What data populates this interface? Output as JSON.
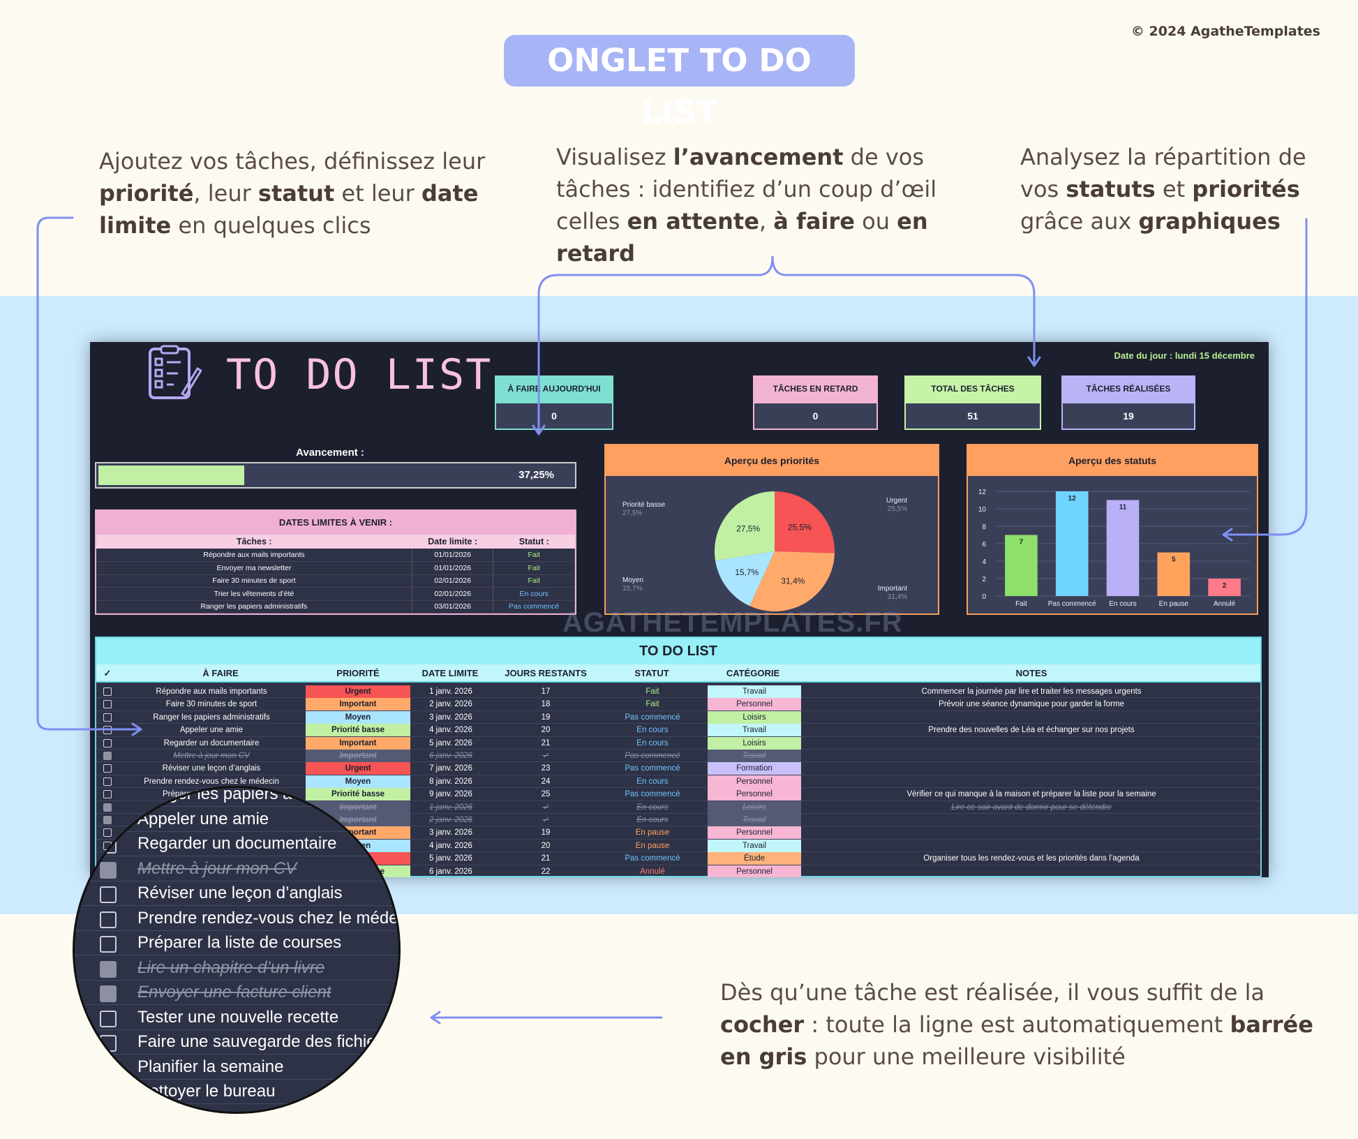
{
  "header": {
    "title": "ONGLET TO DO LIST",
    "copyright": "© 2024 AgatheTemplates"
  },
  "captions": {
    "c1": [
      "Ajoutez vos tâches, définissez leur ",
      "priorité",
      ", leur ",
      "statut",
      " et leur ",
      "date limite",
      " en quelques clics"
    ],
    "c2": [
      "Visualisez ",
      "l’avancement",
      " de vos tâches : identifiez d’un coup d’œil celles ",
      "en attente",
      ", ",
      "à faire",
      " ou ",
      "en retard"
    ],
    "c3": [
      "Analysez la répartition de vos ",
      "statuts",
      " et ",
      "priorités",
      " grâce aux ",
      "graphiques"
    ],
    "c4": [
      "Dès qu’une tâche est réalisée, il vous suffit de la ",
      "cocher",
      " : toute la ligne est automatiquement ",
      "barrée en gris",
      " pour une meilleure visibilité"
    ]
  },
  "app": {
    "title": "TO DO LIST",
    "date_du_jour": "Date du jour : lundi 15 décembre",
    "watermark": "AGATHETEMPLATES.FR",
    "kpis": [
      {
        "label": "À FAIRE AUJOURD'HUI",
        "value": "0",
        "color": "#7ee0d0"
      },
      {
        "label": "TÂCHES EN RETARD",
        "value": "0",
        "color": "#f3b4d2"
      },
      {
        "label": "TOTAL DES TÂCHES",
        "value": "51",
        "color": "#c6f3a8"
      },
      {
        "label": "TÂCHES RÉALISÉES",
        "value": "19",
        "color": "#b9b4f6"
      }
    ],
    "progress": {
      "label": "Avancement :",
      "value": 0.3725,
      "display": "37,25%"
    },
    "deadlines": {
      "title": "DATES LIMITES À VENIR :",
      "headers": [
        "Tâches :",
        "Date limite :",
        "Statut :"
      ],
      "rows": [
        [
          "Répondre aux mails importants",
          "01/01/2026",
          "Fait"
        ],
        [
          "Envoyer ma newsletter",
          "01/01/2026",
          "Fait"
        ],
        [
          "Faire 30 minutes de sport",
          "02/01/2026",
          "Fait"
        ],
        [
          "Trier les vêtements d’été",
          "02/01/2026",
          "En cours"
        ],
        [
          "Ranger les papiers administratifs",
          "03/01/2026",
          "Pas commencé"
        ]
      ]
    },
    "status_colors": {
      "Fait": "#a6f08a",
      "En cours": "#70c4ff",
      "Pas commencé": "#70c4ff",
      "En pause": "#ffa35c",
      "Annulé": "#ff7b7b"
    }
  },
  "chart_data": [
    {
      "type": "pie",
      "title": "Aperçu des priorités",
      "labels": [
        "Urgent",
        "Important",
        "Moyen",
        "Priorité basse"
      ],
      "values": [
        25.5,
        31.4,
        15.7,
        27.5
      ],
      "value_labels": [
        "25,5%",
        "31,4%",
        "15,7%",
        "27,5%"
      ],
      "colors": [
        "#f65455",
        "#ffaa6a",
        "#a9e5ff",
        "#c1f0a4"
      ]
    },
    {
      "type": "bar",
      "title": "Aperçu des statuts",
      "categories": [
        "Fait",
        "Pas commencé",
        "En cours",
        "En pause",
        "Annulé"
      ],
      "values": [
        7,
        12,
        11,
        5,
        2
      ],
      "colors": [
        "#8ee06a",
        "#6fd4ff",
        "#b9b0f7",
        "#ffa35c",
        "#ff7b88"
      ],
      "ylim": [
        0,
        12
      ],
      "yticks": [
        0,
        2,
        4,
        6,
        8,
        10,
        12
      ]
    }
  ],
  "todo": {
    "title": "TO DO LIST",
    "headers": {
      "check": "✓",
      "task": "À FAIRE",
      "priority": "PRIORITÉ",
      "date": "DATE LIMITE",
      "days": "JOURS RESTANTS",
      "status": "STATUT",
      "category": "CATÉGORIE",
      "notes": "NOTES"
    },
    "rows": [
      {
        "done": false,
        "task": "Répondre aux mails importants",
        "priority": "Urgent",
        "date": "1 janv. 2026",
        "days": "17",
        "status": "Fait",
        "category": "Travail",
        "notes": "Commencer la journée par lire et traiter les messages urgents"
      },
      {
        "done": false,
        "task": "Faire 30 minutes de sport",
        "priority": "Important",
        "date": "2 janv. 2026",
        "days": "18",
        "status": "Fait",
        "category": "Personnel",
        "notes": "Prévoir une séance dynamique pour garder la forme"
      },
      {
        "done": false,
        "task": "Ranger les papiers administratifs",
        "priority": "Moyen",
        "date": "3 janv. 2026",
        "days": "19",
        "status": "Pas commencé",
        "category": "Loisirs",
        "notes": ""
      },
      {
        "done": false,
        "task": "Appeler une amie",
        "priority": "Priorité basse",
        "date": "4 janv. 2026",
        "days": "20",
        "status": "En cours",
        "category": "Travail",
        "notes": "Prendre des nouvelles de Léa et échanger sur nos projets"
      },
      {
        "done": false,
        "task": "Regarder un documentaire",
        "priority": "Important",
        "date": "5 janv. 2026",
        "days": "21",
        "status": "En cours",
        "category": "Loisirs",
        "notes": ""
      },
      {
        "done": true,
        "task": "Mettre à jour mon CV",
        "priority": "Important",
        "date": "6 janv. 2026",
        "days": "✓",
        "status": "Pas commencé",
        "category": "Travail",
        "notes": ""
      },
      {
        "done": false,
        "task": "Réviser une leçon d’anglais",
        "priority": "Urgent",
        "date": "7 janv. 2026",
        "days": "23",
        "status": "Pas commencé",
        "category": "Formation",
        "notes": ""
      },
      {
        "done": false,
        "task": "Prendre rendez-vous chez le médecin",
        "priority": "Moyen",
        "date": "8 janv. 2026",
        "days": "24",
        "status": "En cours",
        "category": "Personnel",
        "notes": ""
      },
      {
        "done": false,
        "task": "Préparer la liste de courses",
        "priority": "Priorité basse",
        "date": "9 janv. 2026",
        "days": "25",
        "status": "Pas commencé",
        "category": "Personnel",
        "notes": "Vérifier ce qui manque à la maison et préparer la liste pour la semaine"
      },
      {
        "done": true,
        "task": "Lire un chapitre d’un livre",
        "priority": "Important",
        "date": "1 janv. 2026",
        "days": "✓",
        "status": "En cours",
        "category": "Loisirs",
        "notes": "Lire ce soir avant de dormir pour se détendre"
      },
      {
        "done": true,
        "task": "Envoyer une facture client",
        "priority": "Important",
        "date": "2 janv. 2026",
        "days": "✓",
        "status": "En cours",
        "category": "Travail",
        "notes": ""
      },
      {
        "done": false,
        "task": "Tester une nouvelle recette",
        "priority": "Important",
        "date": "3 janv. 2026",
        "days": "19",
        "status": "En pause",
        "category": "Personnel",
        "notes": ""
      },
      {
        "done": false,
        "task": "Faire une sauvegarde des fichiers",
        "priority": "Moyen",
        "date": "4 janv. 2026",
        "days": "20",
        "status": "En pause",
        "category": "Travail",
        "notes": ""
      },
      {
        "done": false,
        "task": "Planifier la semaine",
        "priority": "Urgent",
        "date": "5 janv. 2026",
        "days": "21",
        "status": "Pas commencé",
        "category": "Étude",
        "notes": "Organiser tous les rendez-vous et les priorités dans l’agenda"
      },
      {
        "done": false,
        "task": "Nettoyer le bureau",
        "priority": "Priorité basse",
        "date": "6 janv. 2026",
        "days": "22",
        "status": "Annulé",
        "category": "Personnel",
        "notes": ""
      }
    ],
    "priority_colors": {
      "Urgent": "#f65455",
      "Important": "#ffaa6a",
      "Moyen": "#a9e5ff",
      "Priorité basse": "#c1f0a4"
    },
    "category_colors": {
      "Travail": "#c1f6fa",
      "Personnel": "#f7b6d3",
      "Loisirs": "#c1f0a4",
      "Formation": "#c9c0fb",
      "Étude": "#ffb37a"
    }
  },
  "magnifier": {
    "rows": [
      {
        "done": false,
        "task": "Ranger les papiers administratifs"
      },
      {
        "done": false,
        "task": "Appeler une amie"
      },
      {
        "done": false,
        "task": "Regarder un documentaire"
      },
      {
        "done": true,
        "task": "Mettre à jour mon CV"
      },
      {
        "done": false,
        "task": "Réviser une leçon d’anglais"
      },
      {
        "done": false,
        "task": "Prendre rendez-vous chez le médecin"
      },
      {
        "done": false,
        "task": "Préparer la liste de courses"
      },
      {
        "done": true,
        "task": "Lire un chapitre d’un livre"
      },
      {
        "done": true,
        "task": "Envoyer une facture client"
      },
      {
        "done": false,
        "task": "Tester une nouvelle recette"
      },
      {
        "done": false,
        "task": "Faire une sauvegarde des fichiers"
      },
      {
        "done": false,
        "task": "Planifier la semaine"
      },
      {
        "done": false,
        "task": "Nettoyer le bureau"
      }
    ]
  }
}
